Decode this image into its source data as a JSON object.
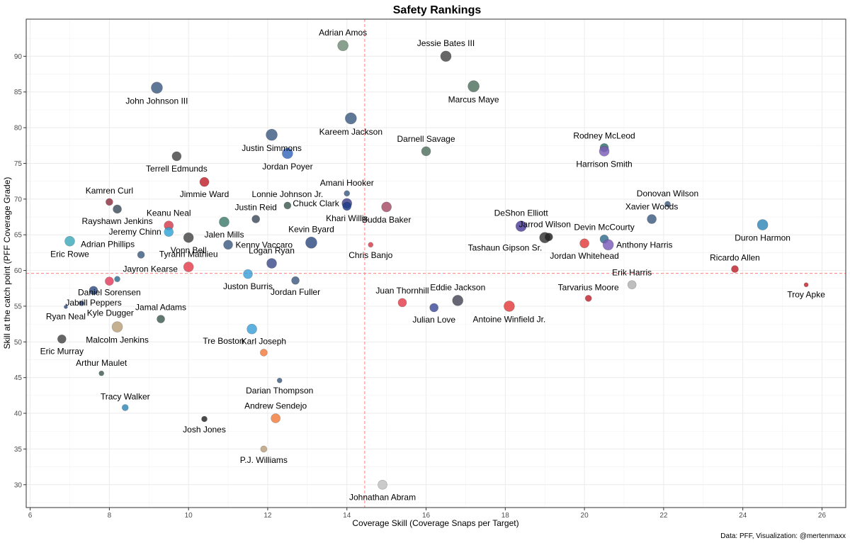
{
  "chart_data": {
    "type": "scatter",
    "title": "Safety Rankings",
    "xlabel": "Coverage Skill (Coverage Snaps per Target)",
    "ylabel": "Skill at the catch point (PFF Coverage Grade)",
    "caption": "Data: PFF, Visualization: @mertenmaxx",
    "xlim": [
      5.9,
      26.6
    ],
    "ylim": [
      26.8,
      95.2
    ],
    "x_ticks": [
      6,
      8,
      10,
      12,
      14,
      16,
      18,
      20,
      22,
      24,
      26
    ],
    "y_ticks": [
      30,
      35,
      40,
      45,
      50,
      55,
      60,
      65,
      70,
      75,
      80,
      85,
      90
    ],
    "reference_lines": {
      "x": 14.45,
      "y": 59.6,
      "color": "#ff7f7f"
    },
    "grid": true,
    "points": [
      {
        "name": "Adrian Amos",
        "x": 13.9,
        "y": 91.5,
        "size": 7.5,
        "color": "#6e8b74",
        "label_pos": "above"
      },
      {
        "name": "Jessie Bates III",
        "x": 16.5,
        "y": 90.0,
        "size": 7.5,
        "color": "#444444",
        "label_pos": "above"
      },
      {
        "name": "John Johnson III",
        "x": 9.2,
        "y": 85.6,
        "size": 8,
        "color": "#3d5a80",
        "label_pos": "below"
      },
      {
        "name": "Marcus Maye",
        "x": 17.2,
        "y": 85.8,
        "size": 8,
        "color": "#4e6e5d",
        "label_pos": "below"
      },
      {
        "name": "Kareem Jackson",
        "x": 14.1,
        "y": 81.3,
        "size": 8,
        "color": "#3d5a80",
        "label_pos": "below"
      },
      {
        "name": "Justin Simmons",
        "x": 12.1,
        "y": 79.0,
        "size": 8,
        "color": "#3d5a80",
        "label_pos": "below"
      },
      {
        "name": "Darnell Savage",
        "x": 16.0,
        "y": 76.7,
        "size": 6.5,
        "color": "#4e6e5d",
        "label_pos": "above"
      },
      {
        "name": "Jordan Poyer",
        "x": 12.5,
        "y": 76.4,
        "size": 7.5,
        "color": "#3465b8",
        "label_pos": "below"
      },
      {
        "name": "Terrell Edmunds",
        "x": 9.7,
        "y": 76.0,
        "size": 6.5,
        "color": "#444444",
        "label_pos": "below"
      },
      {
        "name": "Rodney McLeod",
        "x": 20.5,
        "y": 77.2,
        "size": 6,
        "color": "#2f6b6b",
        "label_pos": "above"
      },
      {
        "name": "Harrison Smith",
        "x": 20.5,
        "y": 76.7,
        "size": 7,
        "color": "#7b5cb8",
        "label_pos": "below"
      },
      {
        "name": "Jimmie Ward",
        "x": 10.4,
        "y": 72.4,
        "size": 6.5,
        "color": "#c0202a",
        "label_pos": "below"
      },
      {
        "name": "Amani Hooker",
        "x": 14.0,
        "y": 70.8,
        "size": 4,
        "color": "#3d5a80",
        "label_pos": "above"
      },
      {
        "name": "Chuck Clark",
        "x": 14.0,
        "y": 69.4,
        "size": 7,
        "color": "#3d3d8a",
        "label_pos": "left"
      },
      {
        "name": "Khari Willis",
        "x": 14.0,
        "y": 69.0,
        "size": 6,
        "color": "#1f3c88",
        "label_pos": "below"
      },
      {
        "name": "Budda Baker",
        "x": 15.0,
        "y": 68.9,
        "size": 7,
        "color": "#a34a63",
        "label_pos": "below"
      },
      {
        "name": "Kamren Curl",
        "x": 8.0,
        "y": 69.6,
        "size": 5,
        "color": "#8b2e3f",
        "label_pos": "above"
      },
      {
        "name": "Lonnie Johnson Jr.",
        "x": 12.5,
        "y": 69.1,
        "size": 5,
        "color": "#3d5a50",
        "label_pos": "above"
      },
      {
        "name": "Rayshawn Jenkins",
        "x": 8.2,
        "y": 68.6,
        "size": 6,
        "color": "#3d4a5a",
        "label_pos": "below"
      },
      {
        "name": "Donovan Wilson",
        "x": 22.1,
        "y": 69.3,
        "size": 4,
        "color": "#3d5a80",
        "label_pos": "above"
      },
      {
        "name": "Justin Reid",
        "x": 11.7,
        "y": 67.2,
        "size": 5.5,
        "color": "#3d4a5a",
        "label_pos": "above"
      },
      {
        "name": "Xavier Woods",
        "x": 21.7,
        "y": 67.2,
        "size": 6.5,
        "color": "#3d5a80",
        "label_pos": "above"
      },
      {
        "name": "Keanu Neal",
        "x": 9.5,
        "y": 66.3,
        "size": 6.5,
        "color": "#d63a4a",
        "label_pos": "above"
      },
      {
        "name": "Jalen Mills",
        "x": 10.9,
        "y": 66.8,
        "size": 7,
        "color": "#3d7a6a",
        "label_pos": "below"
      },
      {
        "name": "DeShon Elliott",
        "x": 18.4,
        "y": 66.2,
        "size": 7.5,
        "color": "#4b3c9a",
        "label_pos": "above"
      },
      {
        "name": "Duron Harmon",
        "x": 24.5,
        "y": 66.4,
        "size": 7.5,
        "color": "#2f86b8",
        "label_pos": "below"
      },
      {
        "name": "Jeremy Chinn",
        "x": 9.5,
        "y": 65.4,
        "size": 6.5,
        "color": "#2fa3d8",
        "label_pos": "left"
      },
      {
        "name": "Vonn Bell",
        "x": 10.0,
        "y": 64.6,
        "size": 7,
        "color": "#444444",
        "label_pos": "below"
      },
      {
        "name": "Eric Rowe",
        "x": 7.0,
        "y": 64.1,
        "size": 7,
        "color": "#3aa8b8",
        "label_pos": "below"
      },
      {
        "name": "Jarrod Wilson",
        "x": 19.0,
        "y": 64.6,
        "size": 7.5,
        "color": "#333333",
        "label_pos": "above"
      },
      {
        "name": "Tashaun Gipson Sr.",
        "x": 19.1,
        "y": 64.7,
        "size": 5.5,
        "color": "#222222",
        "label_pos": "below-left"
      },
      {
        "name": "Devin McCourty",
        "x": 20.5,
        "y": 64.4,
        "size": 6,
        "color": "#2f6b8b",
        "label_pos": "above"
      },
      {
        "name": "Anthony Harris",
        "x": 20.6,
        "y": 63.6,
        "size": 7.5,
        "color": "#7b5cb8",
        "label_pos": "right"
      },
      {
        "name": "Jordan Whitehead",
        "x": 20.0,
        "y": 63.8,
        "size": 6.5,
        "color": "#e03a3a",
        "label_pos": "below"
      },
      {
        "name": "Kevin Byard",
        "x": 13.1,
        "y": 63.9,
        "size": 8,
        "color": "#2f4a80",
        "label_pos": "above"
      },
      {
        "name": "Kenny Vaccaro",
        "x": 11.0,
        "y": 63.6,
        "size": 6.5,
        "color": "#3d5a80",
        "label_pos": "right"
      },
      {
        "name": "Chris Banjo",
        "x": 14.6,
        "y": 63.6,
        "size": 3.5,
        "color": "#d63a4a",
        "label_pos": "below"
      },
      {
        "name": "Adrian Phillips",
        "x": 8.8,
        "y": 62.2,
        "size": 5,
        "color": "#3d5a80",
        "label_pos": "above-left"
      },
      {
        "name": "Logan Ryan",
        "x": 12.1,
        "y": 61.0,
        "size": 7,
        "color": "#3d4a8a",
        "label_pos": "above"
      },
      {
        "name": "Tyrann Mathieu",
        "x": 10.0,
        "y": 60.5,
        "size": 7,
        "color": "#e33a4a",
        "label_pos": "above"
      },
      {
        "name": "Ricardo Allen",
        "x": 23.8,
        "y": 60.2,
        "size": 5,
        "color": "#c0202a",
        "label_pos": "above"
      },
      {
        "name": "Juston Burris",
        "x": 11.5,
        "y": 59.5,
        "size": 6.5,
        "color": "#3aa0d8",
        "label_pos": "below"
      },
      {
        "name": "Jayron Kearse",
        "x": 8.2,
        "y": 58.8,
        "size": 4,
        "color": "#2f6b8b",
        "label_pos": "above-right"
      },
      {
        "name": "Daniel Sorensen",
        "x": 8.0,
        "y": 58.5,
        "size": 6,
        "color": "#e33a5a",
        "label_pos": "below-left"
      },
      {
        "name": "Jordan Fuller",
        "x": 12.7,
        "y": 58.6,
        "size": 5.5,
        "color": "#3d5a80",
        "label_pos": "below"
      },
      {
        "name": "Erik Harris",
        "x": 21.2,
        "y": 58.0,
        "size": 6,
        "color": "#b0b0b0",
        "label_pos": "above"
      },
      {
        "name": "Troy Apke",
        "x": 25.6,
        "y": 58.0,
        "size": 3,
        "color": "#c0202a",
        "label_pos": "below"
      },
      {
        "name": "Tarvarius Moore",
        "x": 20.1,
        "y": 56.1,
        "size": 4.5,
        "color": "#c0202a",
        "label_pos": "above"
      },
      {
        "name": "Jabrill Peppers",
        "x": 7.6,
        "y": 57.2,
        "size": 6,
        "color": "#2f4a80",
        "label_pos": "below"
      },
      {
        "name": "Juan Thornhill",
        "x": 15.4,
        "y": 55.5,
        "size": 6,
        "color": "#e33a4a",
        "label_pos": "above"
      },
      {
        "name": "Eddie Jackson",
        "x": 16.8,
        "y": 55.8,
        "size": 7.5,
        "color": "#444455",
        "label_pos": "above"
      },
      {
        "name": "Julian Love",
        "x": 16.2,
        "y": 54.8,
        "size": 6,
        "color": "#3d4a9a",
        "label_pos": "below"
      },
      {
        "name": "Antoine Winfield Jr.",
        "x": 18.1,
        "y": 55.0,
        "size": 7.5,
        "color": "#e33a3a",
        "label_pos": "below"
      },
      {
        "name": "Kyle Dugger",
        "x": 7.3,
        "y": 55.4,
        "size": 3.5,
        "color": "#2f4a80",
        "label_pos": "below-right"
      },
      {
        "name": "Ryan Neal",
        "x": 6.9,
        "y": 54.9,
        "size": 2.5,
        "color": "#2f4a80",
        "label_pos": "below"
      },
      {
        "name": "Jamal Adams",
        "x": 9.3,
        "y": 53.2,
        "size": 5.5,
        "color": "#3d5a50",
        "label_pos": "above"
      },
      {
        "name": "Malcolm Jenkins",
        "x": 8.2,
        "y": 52.1,
        "size": 7.5,
        "color": "#b8a07a",
        "label_pos": "below"
      },
      {
        "name": "Tre Boston",
        "x": 11.6,
        "y": 51.8,
        "size": 7,
        "color": "#3aa0d8",
        "label_pos": "below-left"
      },
      {
        "name": "Eric Murray",
        "x": 6.8,
        "y": 50.4,
        "size": 6,
        "color": "#444444",
        "label_pos": "below"
      },
      {
        "name": "Karl Joseph",
        "x": 11.9,
        "y": 48.5,
        "size": 5,
        "color": "#f07a3a",
        "label_pos": "above"
      },
      {
        "name": "Arthur Maulet",
        "x": 7.8,
        "y": 45.6,
        "size": 3.5,
        "color": "#3d5a50",
        "label_pos": "above"
      },
      {
        "name": "Darian Thompson",
        "x": 12.3,
        "y": 44.6,
        "size": 3.5,
        "color": "#3d5a80",
        "label_pos": "below"
      },
      {
        "name": "Tracy Walker",
        "x": 8.4,
        "y": 40.8,
        "size": 4.5,
        "color": "#2f86b8",
        "label_pos": "above"
      },
      {
        "name": "Josh Jones",
        "x": 10.4,
        "y": 39.2,
        "size": 4,
        "color": "#222222",
        "label_pos": "below"
      },
      {
        "name": "Andrew Sendejo",
        "x": 12.2,
        "y": 39.3,
        "size": 6.5,
        "color": "#f07a3a",
        "label_pos": "above"
      },
      {
        "name": "P.J. Williams",
        "x": 11.9,
        "y": 35.0,
        "size": 4.5,
        "color": "#b8a07a",
        "label_pos": "below"
      },
      {
        "name": "Johnathan Abram",
        "x": 14.9,
        "y": 30.0,
        "size": 6.5,
        "color": "#c0c0c0",
        "label_pos": "below"
      }
    ]
  }
}
